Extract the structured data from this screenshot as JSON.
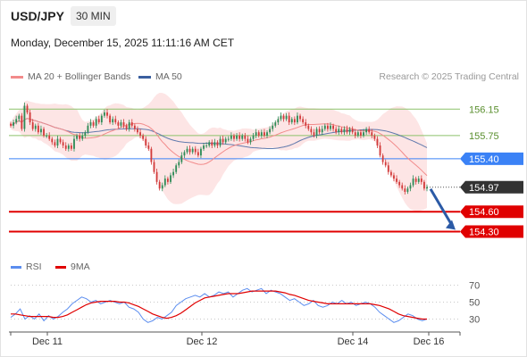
{
  "header": {
    "symbol": "USD/JPY",
    "timeframe": "30 MIN",
    "datetime": "Monday, December 15, 2025 11:11:16 AM CET"
  },
  "legend": {
    "ma20_label": "MA 20 + Bollinger Bands",
    "ma50_label": "MA 50",
    "rsi_label": "RSI",
    "ma9_label": "9MA"
  },
  "credit": "Research © 2025 Trading Central",
  "colors": {
    "candle_up": "#2e8b57",
    "candle_down": "#d23a3a",
    "ma20": "#f28b8b",
    "ma50": "#3a5f9f",
    "bollinger_fill": "#fde1e1",
    "pivot_green": "#8cc26a",
    "pivot_blue": "#3b82f6",
    "support_red": "#e00000",
    "current_price": "#333333",
    "rsi": "#5b8def",
    "rsi_ma": "#e00000",
    "arrow": "#2b5aa6"
  },
  "chart_data": [
    {
      "type": "candlestick",
      "title": "USD/JPY",
      "x_labels": [
        "Dec 11",
        "Dec 12",
        "Dec 14",
        "Dec 16"
      ],
      "ylim": [
        154.05,
        156.45
      ],
      "levels": [
        {
          "label": "156.15",
          "value": 156.15,
          "kind": "resistance"
        },
        {
          "label": "155.75",
          "value": 155.75,
          "kind": "resistance"
        },
        {
          "label": "155.40",
          "value": 155.4,
          "kind": "pivot"
        },
        {
          "label": "154.97",
          "value": 154.97,
          "kind": "current"
        },
        {
          "label": "154.60",
          "value": 154.6,
          "kind": "support"
        },
        {
          "label": "154.30",
          "value": 154.3,
          "kind": "support"
        }
      ],
      "close_series": [
        155.9,
        155.95,
        156.0,
        156.05,
        155.85,
        156.2,
        156.1,
        155.95,
        155.85,
        155.9,
        155.8,
        155.85,
        155.75,
        155.75,
        155.7,
        155.65,
        155.6,
        155.7,
        155.65,
        155.6,
        155.55,
        155.6,
        155.55,
        155.7,
        155.75,
        155.7,
        155.75,
        155.8,
        155.9,
        155.95,
        155.9,
        156.0,
        155.95,
        156.05,
        156.1,
        156.05,
        155.95,
        156.0,
        155.95,
        155.9,
        155.95,
        155.9,
        155.85,
        155.95,
        155.9,
        155.85,
        155.8,
        155.75,
        155.7,
        155.6,
        155.55,
        155.35,
        155.2,
        155.05,
        154.95,
        155.0,
        155.1,
        155.05,
        155.15,
        155.2,
        155.3,
        155.35,
        155.45,
        155.5,
        155.55,
        155.5,
        155.55,
        155.5,
        155.45,
        155.55,
        155.6,
        155.6,
        155.65,
        155.6,
        155.65,
        155.6,
        155.7,
        155.65,
        155.7,
        155.7,
        155.75,
        155.7,
        155.75,
        155.7,
        155.75,
        155.7,
        155.65,
        155.7,
        155.75,
        155.8,
        155.75,
        155.8,
        155.75,
        155.8,
        155.85,
        155.9,
        155.95,
        156.0,
        156.05,
        156.0,
        156.05,
        155.95,
        156.0,
        155.95,
        156.05,
        156.0,
        155.95,
        155.9,
        155.85,
        155.8,
        155.75,
        155.85,
        155.8,
        155.85,
        155.9,
        155.85,
        155.9,
        155.85,
        155.8,
        155.85,
        155.8,
        155.85,
        155.8,
        155.85,
        155.8,
        155.75,
        155.8,
        155.75,
        155.8,
        155.85,
        155.8,
        155.75,
        155.7,
        155.6,
        155.45,
        155.35,
        155.3,
        155.2,
        155.15,
        155.1,
        155.05,
        155.0,
        154.95,
        154.9,
        154.95,
        155.0,
        155.1,
        155.05,
        155.1,
        155.05,
        154.95,
        154.97
      ]
    },
    {
      "type": "line",
      "title": "RSI",
      "ylim": [
        20,
        80
      ],
      "yticks": [
        30,
        50,
        70
      ],
      "series": [
        {
          "name": "RSI",
          "values": [
            32,
            36,
            42,
            30,
            34,
            30,
            36,
            28,
            34,
            30,
            33,
            38,
            42,
            48,
            52,
            56,
            54,
            50,
            52,
            48,
            50,
            52,
            50,
            48,
            50,
            44,
            42,
            38,
            30,
            26,
            28,
            32,
            30,
            34,
            38,
            46,
            50,
            54,
            56,
            58,
            56,
            60,
            56,
            58,
            62,
            60,
            62,
            56,
            60,
            64,
            66,
            62,
            64,
            66,
            60,
            64,
            62,
            60,
            56,
            52,
            54,
            50,
            46,
            48,
            52,
            46,
            44,
            46,
            50,
            48,
            52,
            48,
            50,
            46,
            48,
            50,
            48,
            44,
            38,
            34,
            30,
            26,
            28,
            32,
            36,
            34,
            30,
            28,
            30
          ]
        },
        {
          "name": "9MA",
          "values": [
            36,
            36,
            35,
            34,
            33,
            33,
            33,
            33,
            33,
            32,
            32,
            33,
            35,
            38,
            41,
            44,
            47,
            49,
            50,
            51,
            51,
            51,
            51,
            50,
            50,
            49,
            47,
            45,
            42,
            39,
            36,
            34,
            32,
            31,
            32,
            34,
            37,
            41,
            45,
            49,
            52,
            55,
            56,
            57,
            58,
            59,
            60,
            60,
            60,
            61,
            62,
            63,
            63,
            63,
            63,
            63,
            63,
            62,
            61,
            59,
            58,
            56,
            54,
            52,
            51,
            50,
            49,
            48,
            48,
            48,
            48,
            48,
            48,
            48,
            48,
            48,
            48,
            47,
            46,
            44,
            42,
            39,
            36,
            34,
            33,
            32,
            31,
            30,
            30
          ]
        }
      ]
    }
  ]
}
